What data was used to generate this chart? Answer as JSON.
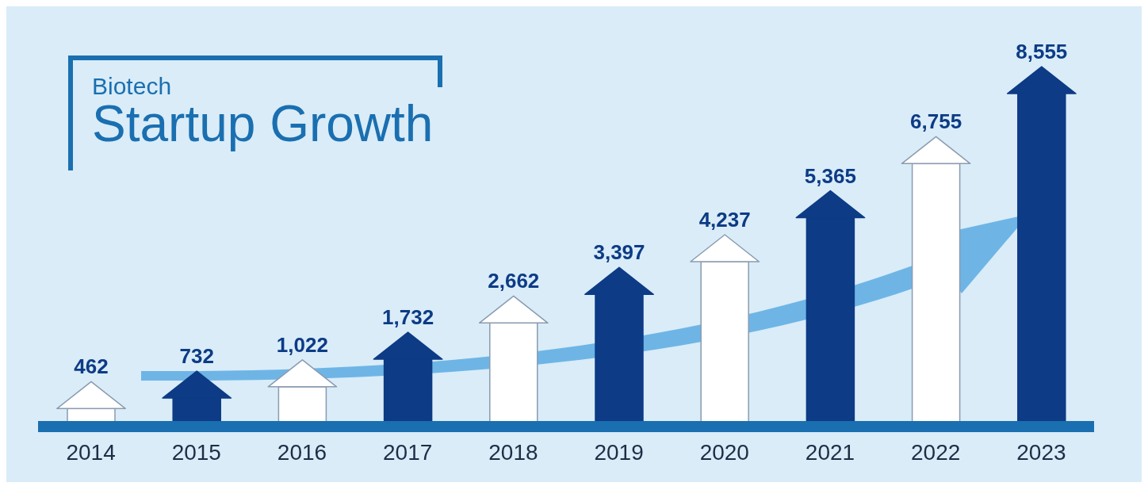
{
  "chart_data": {
    "type": "bar",
    "subtitle": "Biotech",
    "title": "Startup Growth",
    "categories": [
      "2014",
      "2015",
      "2016",
      "2017",
      "2018",
      "2019",
      "2020",
      "2021",
      "2022",
      "2023"
    ],
    "values": [
      462,
      732,
      1022,
      1732,
      2662,
      3397,
      4237,
      5365,
      6755,
      8555
    ],
    "value_labels": [
      "462",
      "732",
      "1,022",
      "1,732",
      "2,662",
      "3,397",
      "4,237",
      "5,365",
      "6,755",
      "8,555"
    ],
    "colors": [
      "#ffffff",
      "#0d3b85",
      "#ffffff",
      "#0d3b85",
      "#ffffff",
      "#0d3b85",
      "#ffffff",
      "#0d3b85",
      "#ffffff",
      "#0d3b85"
    ]
  }
}
